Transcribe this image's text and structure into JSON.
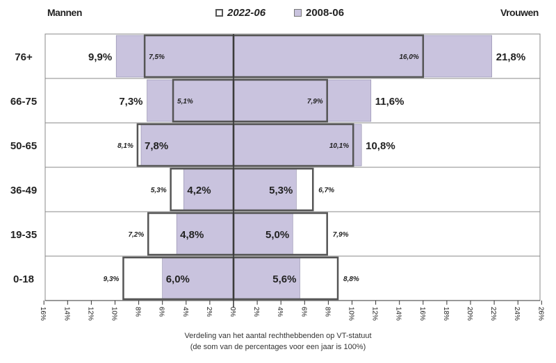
{
  "header": {
    "men_label": "Mannen",
    "women_label": "Vrouwen"
  },
  "legend": {
    "series_2022": "2022-06",
    "series_2008": "2008-06"
  },
  "caption": {
    "line1": "Verdeling van het aantal rechthebbenden op VT-statuut",
    "line2": "(de som van de percentages voor een jaar is 100%)"
  },
  "colors": {
    "fill_2008": "#c9c3de",
    "outline_2022": "#555555",
    "axis": "#333333",
    "grid": "#888888"
  },
  "chart_data": {
    "type": "bar",
    "orientation": "population-pyramid",
    "categories": [
      "76+",
      "66-75",
      "50-65",
      "36-49",
      "19-35",
      "0-18"
    ],
    "series": [
      {
        "name": "2008-06",
        "style": "filled",
        "men": [
          9.9,
          7.3,
          7.8,
          4.2,
          4.8,
          6.0
        ],
        "women": [
          21.8,
          11.6,
          10.8,
          5.3,
          5.0,
          5.6
        ],
        "men_labels": [
          "9,9%",
          "7,3%",
          "7,8%",
          "4,2%",
          "4,8%",
          "6,0%"
        ],
        "women_labels": [
          "21,8%",
          "11,6%",
          "10,8%",
          "5,3%",
          "5,0%",
          "5,6%"
        ]
      },
      {
        "name": "2022-06",
        "style": "outline",
        "men": [
          7.5,
          5.1,
          8.1,
          5.3,
          7.2,
          9.3
        ],
        "women": [
          16.0,
          7.9,
          10.1,
          6.7,
          7.9,
          8.8
        ],
        "men_labels": [
          "7,5%",
          "5,1%",
          "8,1%",
          "5,3%",
          "7,2%",
          "9,3%"
        ],
        "women_labels": [
          "16,0%",
          "7,9%",
          "10,1%",
          "6,7%",
          "7,9%",
          "8,8%"
        ]
      }
    ],
    "x_range": [
      -16,
      26
    ],
    "x_ticks": [
      -16,
      -14,
      -12,
      -10,
      -8,
      -6,
      -4,
      -2,
      0,
      2,
      4,
      6,
      8,
      10,
      12,
      14,
      16,
      18,
      20,
      22,
      24,
      26
    ],
    "x_tick_labels": [
      "16%",
      "14%",
      "12%",
      "10%",
      "8%",
      "6%",
      "4%",
      "2%",
      "0%",
      "2%",
      "4%",
      "6%",
      "8%",
      "10%",
      "12%",
      "14%",
      "16%",
      "18%",
      "20%",
      "22%",
      "24%",
      "26%"
    ],
    "grid": true,
    "legend_position": "top-center"
  }
}
